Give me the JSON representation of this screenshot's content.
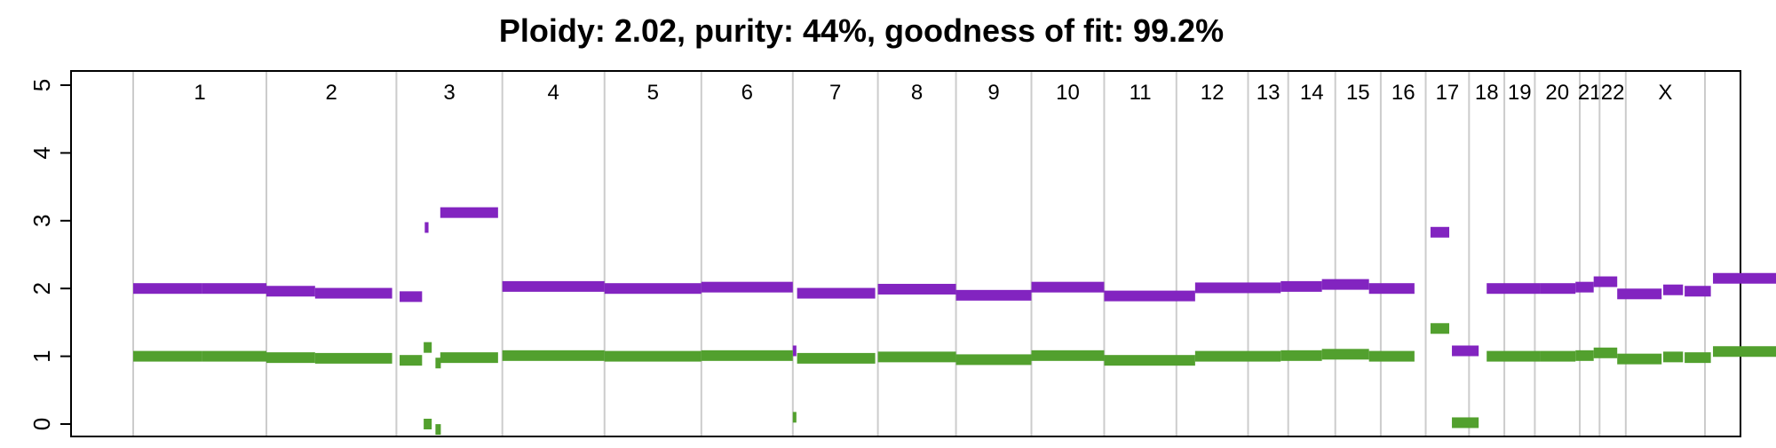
{
  "chart_data": {
    "type": "scatter",
    "title": "Ploidy: 2.02, purity: 44%, goodness of fit: 99.2%",
    "xlabel": "",
    "ylabel": "",
    "ylim": [
      0,
      5
    ],
    "yticks": [
      0,
      1,
      2,
      3,
      4,
      5
    ],
    "grid": true,
    "colors": {
      "total_copy_number": "#8224c0",
      "minor_copy_number": "#52a02e",
      "grid": "#cccccc",
      "axis": "#000000"
    },
    "chromosomes": [
      {
        "name": "1",
        "start": 0,
        "end": 249
      },
      {
        "name": "2",
        "start": 249,
        "end": 492
      },
      {
        "name": "3",
        "start": 492,
        "end": 690
      },
      {
        "name": "4",
        "start": 690,
        "end": 881
      },
      {
        "name": "5",
        "start": 881,
        "end": 1062
      },
      {
        "name": "6",
        "start": 1062,
        "end": 1233
      },
      {
        "name": "7",
        "start": 1233,
        "end": 1392
      },
      {
        "name": "8",
        "start": 1392,
        "end": 1538
      },
      {
        "name": "9",
        "start": 1538,
        "end": 1679
      },
      {
        "name": "10",
        "start": 1679,
        "end": 1815
      },
      {
        "name": "11",
        "start": 1815,
        "end": 1950
      },
      {
        "name": "12",
        "start": 1950,
        "end": 2084
      },
      {
        "name": "13",
        "start": 2084,
        "end": 2159
      },
      {
        "name": "14",
        "start": 2159,
        "end": 2247
      },
      {
        "name": "15",
        "start": 2247,
        "end": 2332
      },
      {
        "name": "16",
        "start": 2332,
        "end": 2416
      },
      {
        "name": "17",
        "start": 2416,
        "end": 2497
      },
      {
        "name": "18",
        "start": 2497,
        "end": 2563
      },
      {
        "name": "19",
        "start": 2563,
        "end": 2620
      },
      {
        "name": "20",
        "start": 2620,
        "end": 2704
      },
      {
        "name": "21",
        "start": 2704,
        "end": 2741
      },
      {
        "name": "22",
        "start": 2741,
        "end": 2790
      },
      {
        "name": "X",
        "start": 2790,
        "end": 2938
      }
    ],
    "series": [
      {
        "values": [
          {
            "start": 0,
            "end": 128,
            "y": 2.0
          },
          {
            "start": 128,
            "end": 249,
            "y": 2.0
          },
          {
            "start": 249,
            "end": 340,
            "y": 1.96
          },
          {
            "start": 340,
            "end": 484,
            "y": 1.93
          },
          {
            "start": 498,
            "end": 540,
            "y": 1.88
          },
          {
            "start": 545,
            "end": 552,
            "y": 2.9
          },
          {
            "start": 574,
            "end": 682,
            "y": 3.12
          },
          {
            "start": 690,
            "end": 881,
            "y": 2.03
          },
          {
            "start": 881,
            "end": 1062,
            "y": 2.0
          },
          {
            "start": 1062,
            "end": 1233,
            "y": 2.02
          },
          {
            "start": 1233,
            "end": 1238,
            "y": 1.08
          },
          {
            "start": 1241,
            "end": 1387,
            "y": 1.93
          },
          {
            "start": 1392,
            "end": 1538,
            "y": 1.99
          },
          {
            "start": 1538,
            "end": 1679,
            "y": 1.9
          },
          {
            "start": 1679,
            "end": 1815,
            "y": 2.02
          },
          {
            "start": 1815,
            "end": 1985,
            "y": 1.89
          },
          {
            "start": 1985,
            "end": 2145,
            "y": 2.01
          },
          {
            "start": 2145,
            "end": 2222,
            "y": 2.03
          },
          {
            "start": 2222,
            "end": 2310,
            "y": 2.06
          },
          {
            "start": 2310,
            "end": 2395,
            "y": 2.0
          },
          {
            "start": 2425,
            "end": 2460,
            "y": 2.83
          },
          {
            "start": 2465,
            "end": 2515,
            "y": 1.08
          },
          {
            "start": 2530,
            "end": 2630,
            "y": 2.0
          },
          {
            "start": 2630,
            "end": 2696,
            "y": 2.0
          },
          {
            "start": 2696,
            "end": 2730,
            "y": 2.02
          },
          {
            "start": 2730,
            "end": 2774,
            "y": 2.1
          },
          {
            "start": 2774,
            "end": 2857,
            "y": 1.92
          },
          {
            "start": 2860,
            "end": 2897,
            "y": 1.98
          },
          {
            "start": 2900,
            "end": 2949,
            "y": 1.96
          },
          {
            "start": 2953,
            "end": 3097,
            "y": 2.15
          }
        ]
      },
      {
        "values": [
          {
            "start": 0,
            "end": 128,
            "y": 1.0
          },
          {
            "start": 128,
            "end": 249,
            "y": 1.0
          },
          {
            "start": 249,
            "end": 340,
            "y": 0.98
          },
          {
            "start": 340,
            "end": 484,
            "y": 0.97
          },
          {
            "start": 498,
            "end": 540,
            "y": 0.94
          },
          {
            "start": 543,
            "end": 558,
            "y": 1.13
          },
          {
            "start": 543,
            "end": 558,
            "y": 0.0
          },
          {
            "start": 565,
            "end": 575,
            "y": 0.9
          },
          {
            "start": 565,
            "end": 575,
            "y": -0.08
          },
          {
            "start": 574,
            "end": 682,
            "y": 0.98
          },
          {
            "start": 690,
            "end": 881,
            "y": 1.01
          },
          {
            "start": 881,
            "end": 1062,
            "y": 1.0
          },
          {
            "start": 1062,
            "end": 1233,
            "y": 1.01
          },
          {
            "start": 1233,
            "end": 1238,
            "y": 0.1
          },
          {
            "start": 1241,
            "end": 1387,
            "y": 0.97
          },
          {
            "start": 1392,
            "end": 1538,
            "y": 0.99
          },
          {
            "start": 1538,
            "end": 1679,
            "y": 0.95
          },
          {
            "start": 1679,
            "end": 1815,
            "y": 1.01
          },
          {
            "start": 1815,
            "end": 1985,
            "y": 0.94
          },
          {
            "start": 1985,
            "end": 2145,
            "y": 1.0
          },
          {
            "start": 2145,
            "end": 2222,
            "y": 1.01
          },
          {
            "start": 2222,
            "end": 2310,
            "y": 1.03
          },
          {
            "start": 2310,
            "end": 2395,
            "y": 1.0
          },
          {
            "start": 2425,
            "end": 2460,
            "y": 1.41
          },
          {
            "start": 2465,
            "end": 2515,
            "y": 0.02
          },
          {
            "start": 2530,
            "end": 2630,
            "y": 1.0
          },
          {
            "start": 2630,
            "end": 2696,
            "y": 1.0
          },
          {
            "start": 2696,
            "end": 2730,
            "y": 1.01
          },
          {
            "start": 2730,
            "end": 2774,
            "y": 1.05
          },
          {
            "start": 2774,
            "end": 2857,
            "y": 0.96
          },
          {
            "start": 2860,
            "end": 2897,
            "y": 0.99
          },
          {
            "start": 2900,
            "end": 2949,
            "y": 0.98
          },
          {
            "start": 2953,
            "end": 3097,
            "y": 1.07
          }
        ]
      }
    ]
  }
}
